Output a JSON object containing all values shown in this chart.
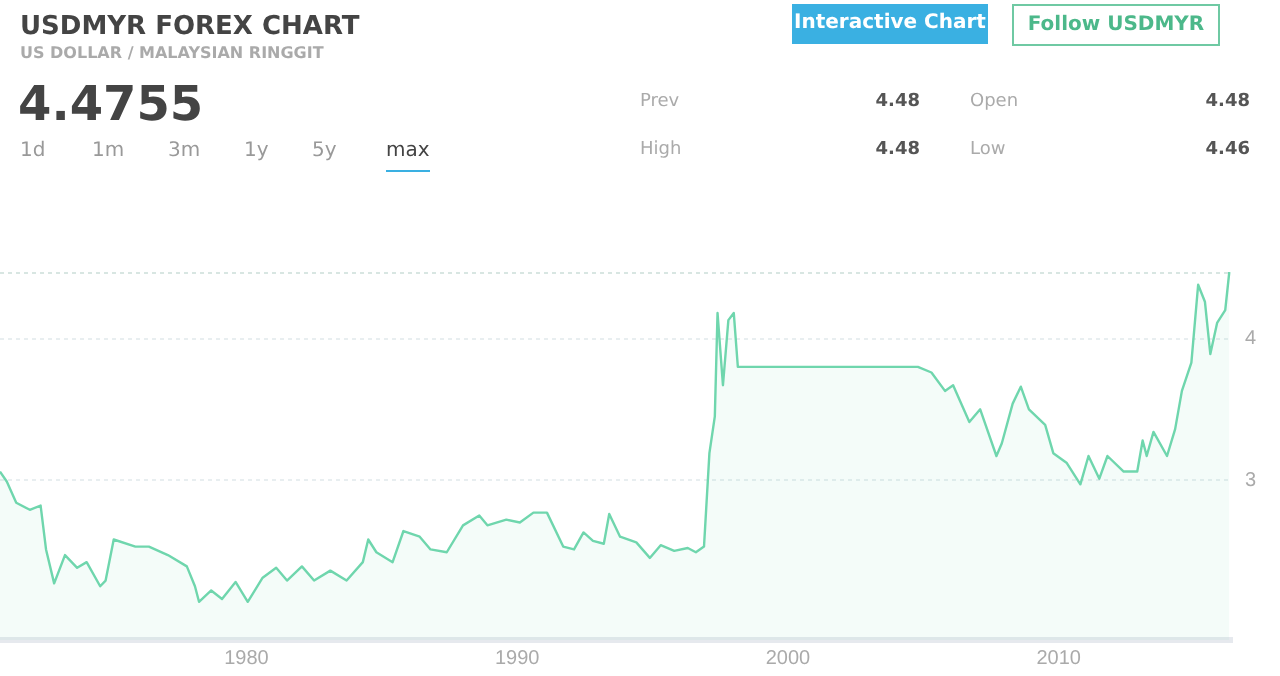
{
  "chart_data": {
    "type": "area",
    "title": "USDMYR FOREX CHART",
    "subtitle": "US DOLLAR / MALAYSIAN RINGGIT",
    "annotations": [
      "4.4755",
      "1d",
      "1m",
      "3m",
      "1y",
      "5y",
      "max",
      "Interactive Chart",
      "Follow USDMYR",
      "Prev",
      "4.48",
      "High",
      "4.48",
      "Open",
      "4.48",
      "Low",
      "4.46"
    ],
    "x": [
      1970.9,
      1971.15,
      1971.5,
      1972.0,
      1972.4,
      1972.6,
      1972.9,
      1973.3,
      1973.75,
      1974.1,
      1974.6,
      1974.8,
      1975.1,
      1975.9,
      1976.4,
      1977.1,
      1977.8,
      1978.1,
      1978.25,
      1978.7,
      1979.1,
      1979.6,
      1980.05,
      1980.6,
      1981.1,
      1981.5,
      1982.05,
      1982.5,
      1983.1,
      1983.7,
      1984.3,
      1984.5,
      1984.8,
      1985.4,
      1985.8,
      1986.4,
      1986.8,
      1987.4,
      1988.0,
      1988.6,
      1988.9,
      1989.6,
      1990.1,
      1990.6,
      1991.1,
      1991.7,
      1992.1,
      1992.45,
      1992.8,
      1993.2,
      1993.4,
      1993.8,
      1994.4,
      1994.9,
      1995.3,
      1995.8,
      1996.3,
      1996.6,
      1996.9,
      1997.1,
      1997.3,
      1997.4,
      1997.6,
      1997.8,
      1998.0,
      1998.15,
      2004.8,
      2005.3,
      2005.8,
      2006.1,
      2006.7,
      2007.1,
      2007.7,
      2007.9,
      2008.3,
      2008.6,
      2008.9,
      2009.5,
      2009.8,
      2010.3,
      2010.8,
      2011.1,
      2011.5,
      2011.8,
      2012.4,
      2012.9,
      2013.1,
      2013.25,
      2013.5,
      2014.0,
      2014.3,
      2014.55,
      2014.9,
      2015.15,
      2015.4,
      2015.6,
      2015.85,
      2016.15,
      2016.3
    ],
    "series": [
      {
        "color": "#6fd6ad",
        "values": [
          3.06,
          2.99,
          2.84,
          2.79,
          2.82,
          2.51,
          2.27,
          2.47,
          2.38,
          2.42,
          2.25,
          2.29,
          2.58,
          2.53,
          2.53,
          2.47,
          2.39,
          2.25,
          2.14,
          2.22,
          2.16,
          2.28,
          2.14,
          2.31,
          2.38,
          2.29,
          2.39,
          2.29,
          2.36,
          2.29,
          2.42,
          2.58,
          2.49,
          2.42,
          2.64,
          2.6,
          2.51,
          2.49,
          2.68,
          2.75,
          2.68,
          2.72,
          2.7,
          2.77,
          2.77,
          2.53,
          2.51,
          2.63,
          2.57,
          2.55,
          2.76,
          2.6,
          2.56,
          2.45,
          2.54,
          2.5,
          2.52,
          2.49,
          2.53,
          3.19,
          3.45,
          4.18,
          3.67,
          4.13,
          4.18,
          3.8,
          3.8,
          3.76,
          3.63,
          3.67,
          3.41,
          3.5,
          3.17,
          3.26,
          3.54,
          3.66,
          3.5,
          3.39,
          3.19,
          3.12,
          2.97,
          3.17,
          3.01,
          3.17,
          3.06,
          3.06,
          3.28,
          3.17,
          3.34,
          3.17,
          3.36,
          3.63,
          3.83,
          4.38,
          4.26,
          3.89,
          4.11,
          4.2,
          4.47
        ]
      }
    ],
    "xlim": [
      1970.9,
      2016.4
    ],
    "xticks": [
      1980,
      1990,
      2000,
      2010
    ],
    "ylim": [
      1.87,
      4.47
    ],
    "yticks": [
      3,
      4
    ],
    "grid": "y"
  }
}
